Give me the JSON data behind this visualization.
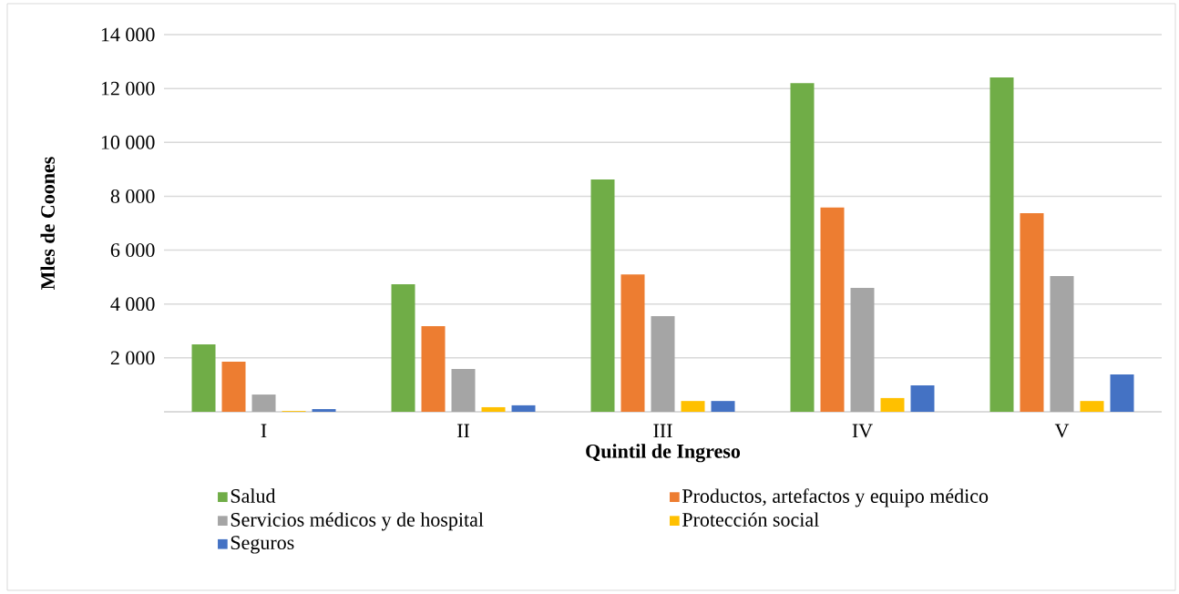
{
  "chart_data": {
    "type": "bar",
    "xlabel": "Quintil de Ingreso",
    "ylabel": "Mles de Coones",
    "categories": [
      "I",
      "II",
      "III",
      "IV",
      "V"
    ],
    "series": [
      {
        "name": "Salud",
        "color": "#70ad47",
        "values": [
          2500,
          4730,
          8620,
          12200,
          12410
        ]
      },
      {
        "name": "Productos, artefactos y equipo médico",
        "color": "#ed7d31",
        "values": [
          1860,
          3180,
          5100,
          7580,
          7370
        ]
      },
      {
        "name": "Servicios médicos y de hospital",
        "color": "#a5a5a5",
        "values": [
          640,
          1590,
          3550,
          4600,
          5040
        ]
      },
      {
        "name": "Protección social",
        "color": "#ffc000",
        "values": [
          30,
          170,
          400,
          510,
          400
        ]
      },
      {
        "name": "Seguros",
        "color": "#4472c4",
        "values": [
          100,
          240,
          400,
          980,
          1390
        ]
      }
    ],
    "ylim": [
      0,
      14000
    ],
    "yticks": [
      {
        "value": 0,
        "label": null
      },
      {
        "value": 2000,
        "label": "2 000"
      },
      {
        "value": 4000,
        "label": "4 000"
      },
      {
        "value": 6000,
        "label": "6 000"
      },
      {
        "value": 8000,
        "label": "8 000"
      },
      {
        "value": 10000,
        "label": "10 000"
      },
      {
        "value": 12000,
        "label": "12 000"
      },
      {
        "value": 14000,
        "label": "14 000"
      }
    ],
    "grid": "y",
    "legend": "bottom"
  }
}
